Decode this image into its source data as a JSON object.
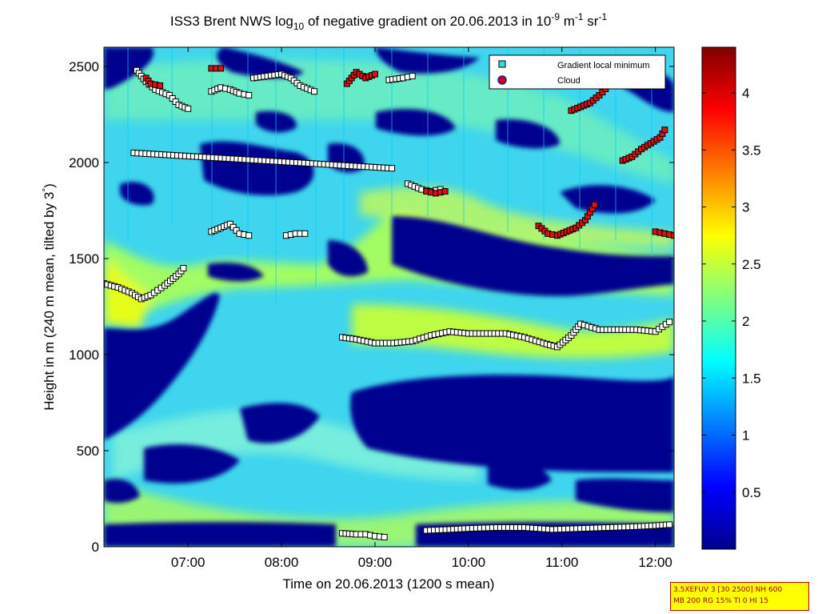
{
  "chart_data": {
    "type": "heatmap",
    "title_parts": {
      "prefix": "ISS3 Brent NWS log",
      "sub": "10",
      "middle": " of negative gradient on 20.06.2013 in 10",
      "sup1": "-9",
      "mid2": " m",
      "sup2": "-1",
      "mid3": " sr",
      "sup3": "-1"
    },
    "xlabel": "Time on 20.06.2013 (1200 s mean)",
    "ylabel_main": "Height in m (240 m mean, tilted by 3",
    "ylabel_deg": "°",
    "ylabel_end": ")",
    "xlim": [
      6.1,
      12.2
    ],
    "ylim": [
      0,
      2600
    ],
    "x_ticks": [
      7,
      8,
      9,
      10,
      11,
      12
    ],
    "x_tick_labels": [
      "07:00",
      "08:00",
      "09:00",
      "10:00",
      "11:00",
      "12:00"
    ],
    "y_ticks": [
      0,
      500,
      1000,
      1500,
      2000,
      2500
    ],
    "y_tick_labels": [
      "0",
      "500",
      "1000",
      "1500",
      "2000",
      "2500"
    ],
    "colorbar": {
      "range": [
        0,
        4.4
      ],
      "ticks": [
        0.5,
        1,
        1.5,
        2,
        2.5,
        3,
        3.5,
        4
      ],
      "tick_labels": [
        "0.5",
        "1",
        "1.5",
        "2",
        "2.5",
        "3",
        "3.5",
        "4"
      ],
      "colormap": "jet"
    },
    "legend": {
      "placement": "top-right",
      "entries": [
        {
          "name": "Gradient local minimum",
          "marker": "square",
          "color": "#33dddd"
        },
        {
          "name": "Cloud",
          "marker": "circle",
          "color": "#dd0000"
        }
      ]
    },
    "gradient_minimum_tracks": [
      {
        "x": [
          6.1,
          6.25,
          6.4,
          6.5,
          6.6,
          6.75,
          6.9,
          6.95
        ],
        "y": [
          1370,
          1350,
          1320,
          1290,
          1310,
          1360,
          1420,
          1450
        ]
      },
      {
        "x": [
          8.65,
          8.8,
          9.0,
          9.2,
          9.4,
          9.6,
          9.8,
          10.0,
          10.2,
          10.4,
          10.6,
          10.8,
          10.95,
          11.1,
          11.2,
          11.4,
          11.6,
          11.8,
          12.0,
          12.15
        ],
        "y": [
          1090,
          1080,
          1060,
          1060,
          1070,
          1100,
          1120,
          1110,
          1110,
          1110,
          1090,
          1060,
          1040,
          1100,
          1160,
          1130,
          1130,
          1130,
          1120,
          1170
        ]
      },
      {
        "x": [
          8.65,
          8.8,
          8.9,
          9.0,
          9.1
        ],
        "y": [
          70,
          65,
          65,
          55,
          50
        ]
      },
      {
        "x": [
          9.55,
          9.8,
          10.0,
          10.3,
          10.6,
          10.9,
          11.2,
          11.5,
          11.8,
          12.0,
          12.15
        ],
        "y": [
          85,
          90,
          95,
          100,
          100,
          90,
          95,
          100,
          105,
          110,
          115
        ]
      },
      {
        "x": [
          6.45,
          6.55,
          6.65,
          6.8,
          6.9,
          7.0
        ],
        "y": [
          2480,
          2420,
          2380,
          2350,
          2300,
          2280
        ]
      },
      {
        "x": [
          7.25,
          7.35,
          7.45,
          7.55,
          7.65
        ],
        "y": [
          2370,
          2390,
          2380,
          2360,
          2350
        ]
      },
      {
        "x": [
          7.7,
          7.85,
          8.0,
          8.1,
          8.2,
          8.35
        ],
        "y": [
          2440,
          2450,
          2460,
          2440,
          2400,
          2370
        ]
      },
      {
        "x": [
          9.15,
          9.3,
          9.4
        ],
        "y": [
          2430,
          2440,
          2450
        ]
      },
      {
        "x": [
          7.25,
          7.35,
          7.45,
          7.55,
          7.65
        ],
        "y": [
          1640,
          1660,
          1680,
          1630,
          1620
        ]
      },
      {
        "x": [
          8.05,
          8.15,
          8.25
        ],
        "y": [
          1620,
          1630,
          1630
        ]
      },
      {
        "x": [
          9.35,
          9.5,
          9.6,
          9.7
        ],
        "y": [
          1890,
          1860,
          1850,
          1860
        ]
      },
      {
        "x": [
          6.42,
          9.18
        ],
        "y": [
          2050,
          1970
        ]
      }
    ],
    "cloud_tracks": [
      {
        "x": [
          6.55,
          6.6,
          6.7
        ],
        "y": [
          2440,
          2410,
          2400
        ]
      },
      {
        "x": [
          7.25,
          7.35
        ],
        "y": [
          2490,
          2490
        ]
      },
      {
        "x": [
          8.7,
          8.8,
          8.9,
          9.0
        ],
        "y": [
          2410,
          2470,
          2440,
          2460
        ]
      },
      {
        "x": [
          11.1,
          11.2,
          11.3,
          11.4,
          11.5
        ],
        "y": [
          2270,
          2290,
          2310,
          2350,
          2400
        ]
      },
      {
        "x": [
          11.65,
          11.75,
          11.85,
          11.95,
          12.05,
          12.1
        ],
        "y": [
          2010,
          2030,
          2070,
          2100,
          2130,
          2170
        ]
      },
      {
        "x": [
          10.75,
          10.85,
          10.95,
          11.05,
          11.15,
          11.25,
          11.35
        ],
        "y": [
          1670,
          1630,
          1620,
          1640,
          1660,
          1700,
          1780
        ]
      },
      {
        "x": [
          12.0,
          12.1,
          12.2
        ],
        "y": [
          1640,
          1630,
          1620
        ]
      },
      {
        "x": [
          9.55,
          9.65,
          9.75
        ],
        "y": [
          1850,
          1840,
          1850
        ]
      }
    ]
  },
  "footer": {
    "line1": "3.5XEFUV 3 [30 2500] NH 600",
    "line2": "MB 200 RG 15% TI 0 HI 15"
  }
}
